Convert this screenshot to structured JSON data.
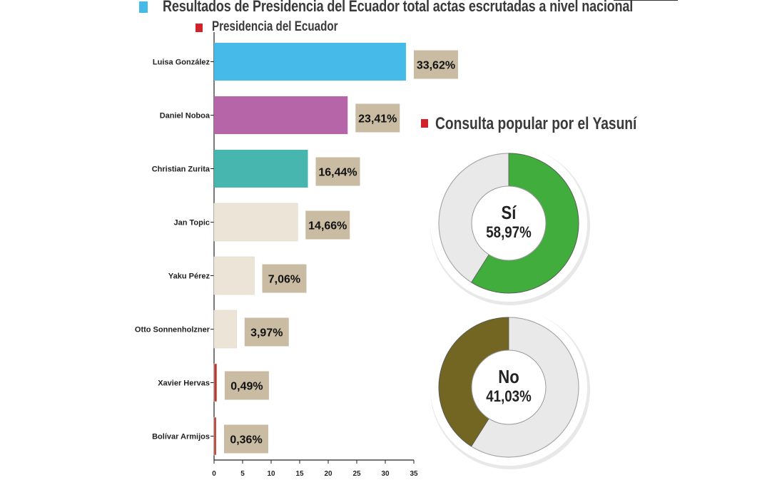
{
  "header": {
    "title": "Resultados de Presidencia del Ecuador total actas escrutadas a nivel nacional",
    "subtitle": "Presidencia del Ecuador",
    "yasuni_title": "Consulta popular por el Yasuní"
  },
  "colors": {
    "title_mark": "#45b9e8",
    "legend_mark": "#d2232a",
    "label_box": "#c9bca3"
  },
  "chart_data": [
    {
      "type": "bar",
      "orientation": "horizontal",
      "title": "Presidencia del Ecuador",
      "categories": [
        "Luisa González",
        "Daniel Noboa",
        "Christian Zurita",
        "Jan Topic",
        "Yaku Pérez",
        "Otto Sonnenholzner",
        "Xavier Hervas",
        "Bolívar Armijos"
      ],
      "values": [
        33.62,
        23.41,
        16.44,
        14.66,
        7.06,
        3.97,
        0.49,
        0.36
      ],
      "value_labels": [
        "33,62%",
        "23,41%",
        "16,44%",
        "14,66%",
        "7,06%",
        "3,97%",
        "0,49%",
        "0,36%"
      ],
      "colors": [
        "#46bbe9",
        "#b565a8",
        "#46b6ae",
        "#ece4d6",
        "#ece4d6",
        "#ece4d6",
        "#b23a32",
        "#b23a32"
      ],
      "xlim": [
        0,
        35
      ],
      "xticks": [
        "0",
        "5",
        "10",
        "15",
        "20",
        "25",
        "30",
        "35"
      ],
      "grid": false
    },
    {
      "type": "pie",
      "title": "Consulta popular por el Yasuní",
      "subtype": "donut",
      "label": "Sí",
      "value": 58.97,
      "value_label": "58,97%",
      "color": "#40ad3c"
    },
    {
      "type": "pie",
      "title": "Consulta popular por el Yasuní",
      "subtype": "donut",
      "label": "No",
      "value": 41.03,
      "value_label": "41,03%",
      "color": "#726622"
    }
  ]
}
